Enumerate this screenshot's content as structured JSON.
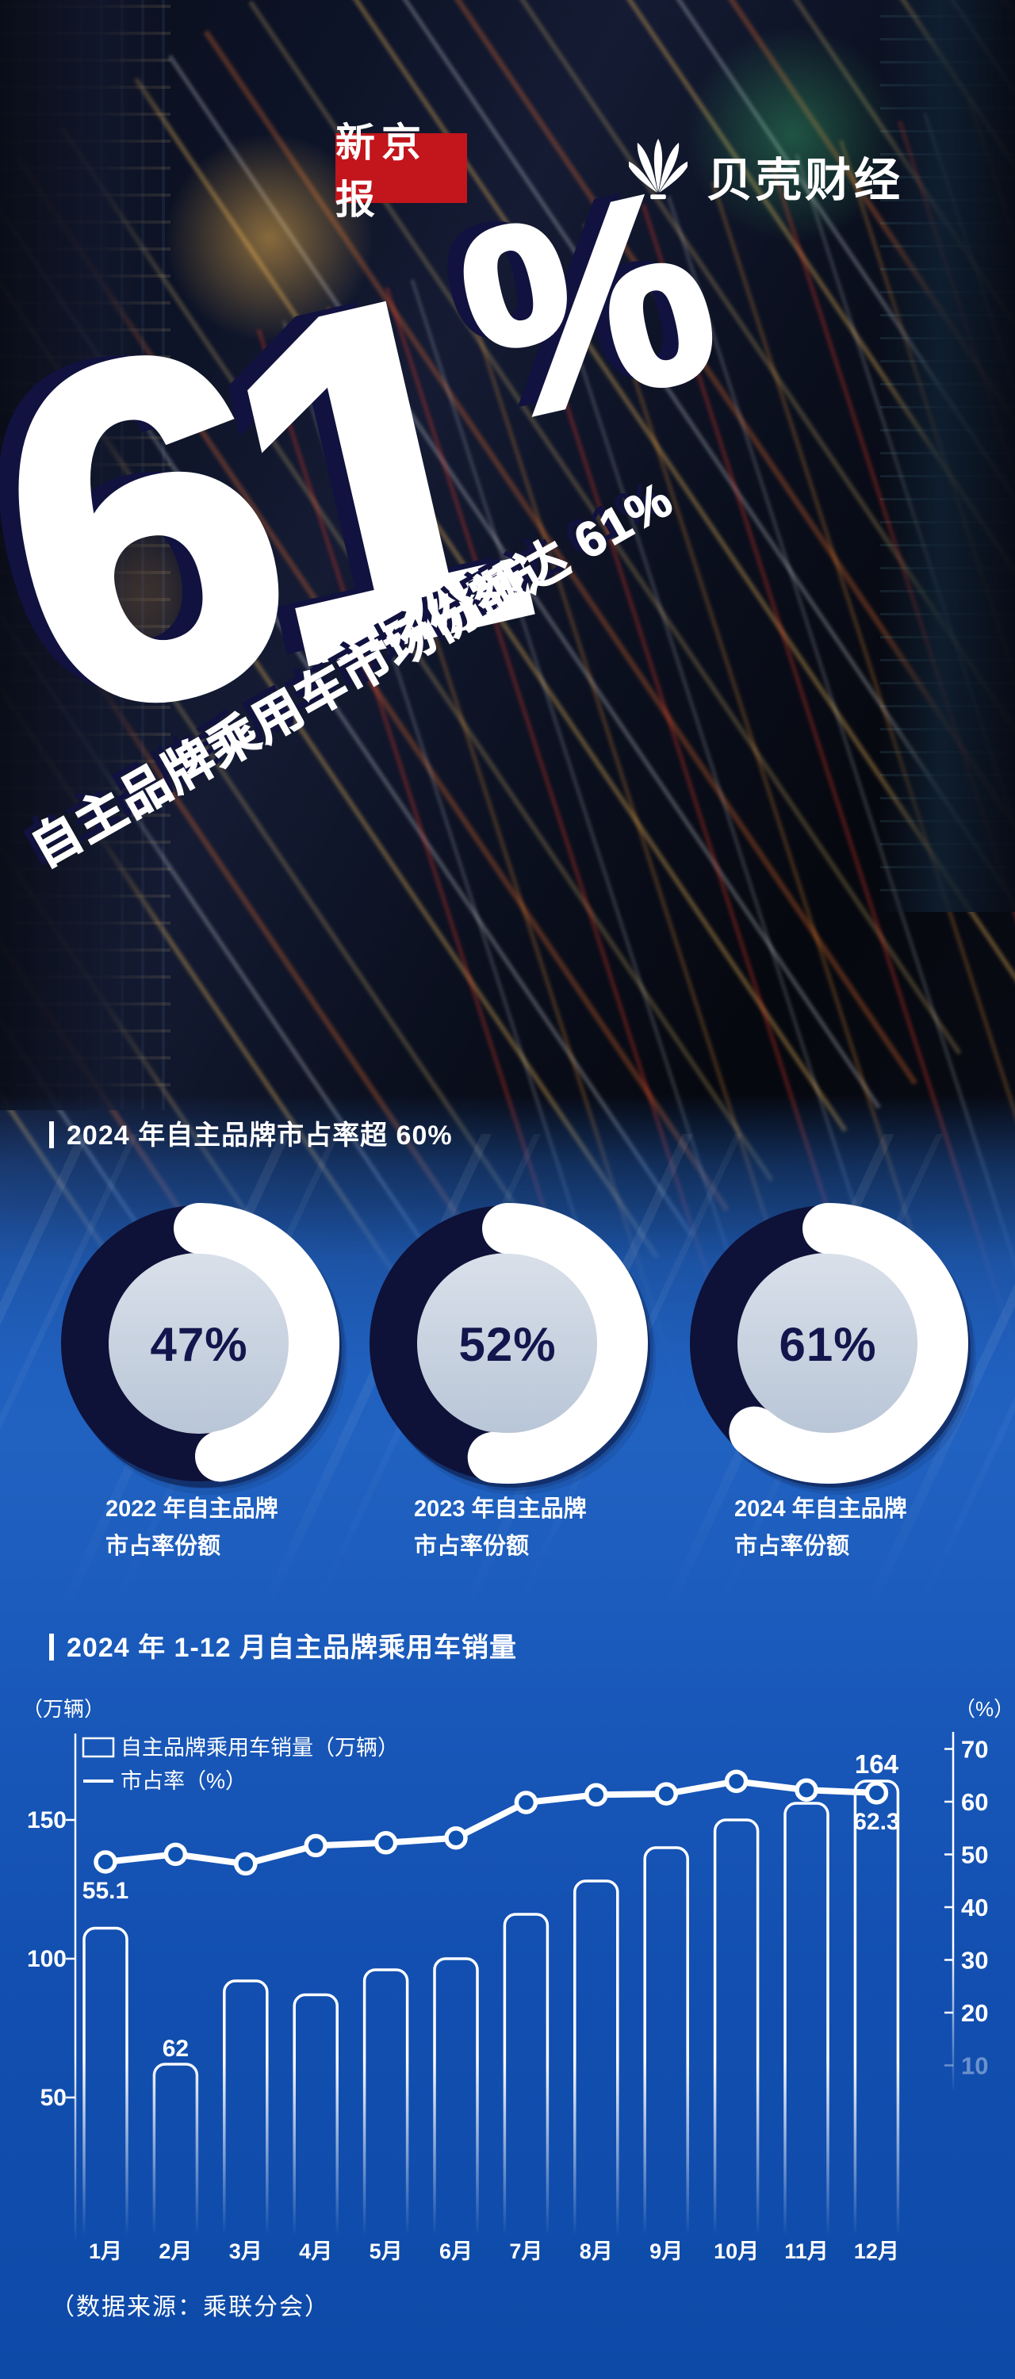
{
  "colors": {
    "accent_red": "#c3151c",
    "deep_navy": "#11123f",
    "ring_navy": "#0e1138",
    "donut_disc_top": "#d9e0ea",
    "donut_disc_bottom": "#b9c6d7",
    "donut_value_navy": "#12164d",
    "chart_bg_blue": "#0f52b1",
    "white": "#ffffff"
  },
  "logos": {
    "left_name": "新京报",
    "right_name": "贝壳财经",
    "right_icon": "shell-icon"
  },
  "hero": {
    "big_number": "61",
    "percent_sign": "%",
    "tagline": "自主品牌乘用车市场份额达 61%"
  },
  "donut_section": {
    "title": "2024 年自主品牌市占率超 60%",
    "donuts": [
      {
        "value": 47,
        "value_label": "47%",
        "caption": [
          "2022 年自主品牌",
          "市占率份额"
        ]
      },
      {
        "value": 52,
        "value_label": "52%",
        "caption": [
          "2023 年自主品牌",
          "市占率份额"
        ]
      },
      {
        "value": 61,
        "value_label": "61%",
        "caption": [
          "2024 年自主品牌",
          "市占率份额"
        ]
      }
    ]
  },
  "chart_section": {
    "title": "2024 年 1-12 月自主品牌乘用车销量"
  },
  "chart_data": {
    "type": "bar+line",
    "title": "2024 年 1-12 月自主品牌乘用车销量",
    "categories": [
      "1月",
      "2月",
      "3月",
      "4月",
      "5月",
      "6月",
      "7月",
      "8月",
      "9月",
      "10月",
      "11月",
      "12月"
    ],
    "series": [
      {
        "name": "自主品牌乘用车销量（万辆）",
        "type": "bar",
        "axis": "left",
        "values": [
          111,
          62,
          92,
          87,
          96,
          100,
          116,
          128,
          140,
          150,
          156,
          164
        ]
      },
      {
        "name": "市占率（%）",
        "type": "line",
        "axis": "right",
        "values": [
          55.1,
          55.9,
          54.9,
          56.8,
          57.1,
          57.6,
          61.3,
          62.1,
          62.2,
          63.5,
          62.6,
          62.3
        ]
      }
    ],
    "point_labels": [
      {
        "series": 0,
        "index": 1,
        "text": "62"
      },
      {
        "series": 0,
        "index": 11,
        "text": "164"
      },
      {
        "series": 1,
        "index": 0,
        "text": "55.1"
      },
      {
        "series": 1,
        "index": 11,
        "text": "62.3"
      }
    ],
    "left_axis": {
      "unit": "（万辆）",
      "ticks": [
        50,
        100,
        150
      ],
      "range": [
        0,
        170
      ]
    },
    "right_axis": {
      "unit": "（%）",
      "ticks": [
        10,
        20,
        30,
        40,
        50,
        60,
        70
      ],
      "range": [
        0,
        75
      ],
      "faded_tick": 10
    },
    "legend": [
      {
        "type": "bar",
        "label": "自主品牌乘用车销量（万辆）"
      },
      {
        "type": "line",
        "label": "市占率（%）"
      }
    ],
    "legend_position": "top-left",
    "grid": false
  },
  "footer": {
    "source": "（数据来源：乘联分会）"
  }
}
